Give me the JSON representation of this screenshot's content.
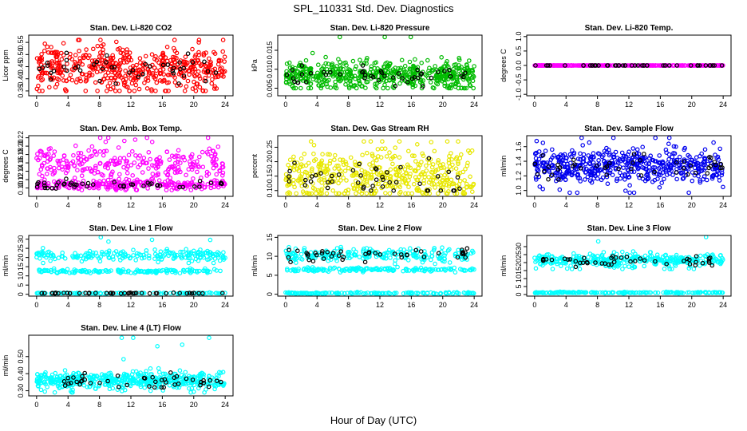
{
  "figure": {
    "main_title": "SPL_110331  Std. Dev. Diagnostics",
    "xlabel": "Hour of Day (UTC)"
  },
  "chart_data": [
    {
      "type": "scatter",
      "title": "Stan. Dev. Li-820 CO2",
      "ylabel": "Licor ppm",
      "xlim": [
        -1,
        25
      ],
      "ylim": [
        0.33,
        0.58
      ],
      "xticks": [
        0,
        4,
        8,
        12,
        16,
        20,
        24
      ],
      "yticks": [
        0.35,
        0.4,
        0.45,
        0.5,
        0.55
      ],
      "ytick_labels": [
        "0.35",
        "0.40",
        "0.45",
        "0.50",
        "0.55"
      ],
      "series": [
        {
          "color": "#ff0000",
          "count": 520,
          "center": 0.44,
          "spread": 0.045,
          "min": 0.35,
          "max": 0.56
        },
        {
          "color": "#000000",
          "count": 45,
          "center": 0.44,
          "spread": 0.025,
          "min": 0.38,
          "max": 0.54
        }
      ]
    },
    {
      "type": "scatter",
      "title": "Stan. Dev. Li-820 Pressure",
      "ylabel": "kPa",
      "xlim": [
        -1,
        25
      ],
      "ylim": [
        0.003,
        0.019
      ],
      "xticks": [
        0,
        4,
        8,
        12,
        16,
        20,
        24
      ],
      "yticks": [
        0.005,
        0.01,
        0.015
      ],
      "ytick_labels": [
        "0.005",
        "0.010",
        "0.015"
      ],
      "series": [
        {
          "color": "#00bb00",
          "count": 560,
          "center": 0.0085,
          "spread": 0.0018,
          "min": 0.005,
          "max": 0.0185
        },
        {
          "color": "#000000",
          "count": 45,
          "center": 0.0082,
          "spread": 0.0012,
          "min": 0.0055,
          "max": 0.011
        }
      ]
    },
    {
      "type": "scatter",
      "title": "Stan. Dev. Li-820 Temp.",
      "ylabel": "degrees C",
      "xlim": [
        -1,
        25
      ],
      "ylim": [
        -1.05,
        1.05
      ],
      "xticks": [
        0,
        4,
        8,
        12,
        16,
        20,
        24
      ],
      "yticks": [
        -1.0,
        -0.5,
        0.0,
        0.5,
        1.0
      ],
      "ytick_labels": [
        "-1.0",
        "-0.5",
        "0.0",
        "0.5",
        "1.0"
      ],
      "series": [
        {
          "color": "#ff00ff",
          "count": 300,
          "center": 0.0,
          "spread": 0.0,
          "min": 0.0,
          "max": 0.0
        },
        {
          "color": "#000000",
          "count": 45,
          "center": 0.0,
          "spread": 0.0,
          "min": 0.0,
          "max": 0.0
        }
      ]
    },
    {
      "type": "scatter",
      "title": "Stan. Dev. Amb. Box Temp.",
      "ylabel": "degrees C",
      "xlim": [
        -1,
        25
      ],
      "ylim": [
        0.08,
        0.225
      ],
      "xticks": [
        0,
        4,
        8,
        12,
        16,
        20,
        24
      ],
      "yticks": [
        0.1,
        0.12,
        0.14,
        0.16,
        0.18,
        0.2,
        0.22
      ],
      "ytick_labels": [
        "0.10",
        "0.12",
        "0.14",
        "0.16",
        "0.18",
        "0.20",
        "0.22"
      ],
      "series": [
        {
          "color": "#ff00ff",
          "count": 300,
          "center": 0.155,
          "spread": 0.022,
          "min": 0.1,
          "max": 0.22
        },
        {
          "color": "#ff00ff",
          "count": 220,
          "center": 0.108,
          "spread": 0.006,
          "min": 0.095,
          "max": 0.125
        },
        {
          "color": "#000000",
          "count": 45,
          "center": 0.108,
          "spread": 0.006,
          "min": 0.095,
          "max": 0.125
        }
      ]
    },
    {
      "type": "scatter",
      "title": "Stan. Dev. Gas Stream RH",
      "ylabel": "percent",
      "xlim": [
        -1,
        25
      ],
      "ylim": [
        0.08,
        0.29
      ],
      "xticks": [
        0,
        4,
        8,
        12,
        16,
        20,
        24
      ],
      "yticks": [
        0.1,
        0.15,
        0.2,
        0.25
      ],
      "ytick_labels": [
        "0.10",
        "0.15",
        "0.20",
        "0.25"
      ],
      "series": [
        {
          "color": "#ffff00",
          "count": 460,
          "center": 0.15,
          "spread": 0.045,
          "min": 0.09,
          "max": 0.27
        },
        {
          "color": "#000000",
          "count": 45,
          "center": 0.13,
          "spread": 0.035,
          "min": 0.1,
          "max": 0.28
        }
      ]
    },
    {
      "type": "scatter",
      "title": "Stan. Dev. Sample Flow",
      "ylabel": "ml/min",
      "xlim": [
        -1,
        25
      ],
      "ylim": [
        0.92,
        1.75
      ],
      "xticks": [
        0,
        4,
        8,
        12,
        16,
        20,
        24
      ],
      "yticks": [
        1.0,
        1.2,
        1.4,
        1.6
      ],
      "ytick_labels": [
        "1.0",
        "1.2",
        "1.4",
        "1.6"
      ],
      "series": [
        {
          "color": "#0000ee",
          "count": 520,
          "center": 1.33,
          "spread": 0.12,
          "min": 0.97,
          "max": 1.72
        },
        {
          "color": "#000000",
          "count": 45,
          "center": 1.32,
          "spread": 0.08,
          "min": 1.15,
          "max": 1.5
        }
      ]
    },
    {
      "type": "scatter",
      "title": "Stan. Dev. Line 1 Flow",
      "ylabel": "ml/min",
      "xlim": [
        -1,
        25
      ],
      "ylim": [
        -1,
        32
      ],
      "xticks": [
        0,
        4,
        8,
        12,
        16,
        20,
        24
      ],
      "yticks": [
        0,
        5,
        10,
        15,
        20,
        25,
        30
      ],
      "ytick_labels": [
        "0",
        "5",
        "10",
        "15",
        "20",
        "25",
        "30"
      ],
      "series": [
        {
          "color": "#00ffff",
          "count": 200,
          "center": 21,
          "spread": 1.5,
          "min": 17,
          "max": 31
        },
        {
          "color": "#00ffff",
          "count": 150,
          "center": 12.5,
          "spread": 0.5,
          "min": 11.5,
          "max": 14
        },
        {
          "color": "#00ffff",
          "count": 100,
          "center": 0.6,
          "spread": 0.15,
          "min": 0.3,
          "max": 1
        },
        {
          "color": "#000000",
          "count": 45,
          "center": 0.6,
          "spread": 0.1,
          "min": 0.4,
          "max": 0.9
        }
      ]
    },
    {
      "type": "scatter",
      "title": "Stan. Dev. Line 2 Flow",
      "ylabel": "ml/min",
      "xlim": [
        -1,
        25
      ],
      "ylim": [
        -0.5,
        15.5
      ],
      "xticks": [
        0,
        4,
        8,
        12,
        16,
        20,
        24
      ],
      "yticks": [
        0,
        5,
        10,
        15
      ],
      "ytick_labels": [
        "0",
        "5",
        "10",
        "15"
      ],
      "series": [
        {
          "color": "#00ffff",
          "count": 220,
          "center": 10.4,
          "spread": 0.9,
          "min": 8,
          "max": 15.5
        },
        {
          "color": "#00ffff",
          "count": 150,
          "center": 6.5,
          "spread": 0.25,
          "min": 5.8,
          "max": 7.2
        },
        {
          "color": "#00ffff",
          "count": 150,
          "center": 0.3,
          "spread": 0.1,
          "min": 0.1,
          "max": 0.6
        },
        {
          "color": "#000000",
          "count": 45,
          "center": 10.5,
          "spread": 0.8,
          "min": 8.5,
          "max": 12.5
        }
      ]
    },
    {
      "type": "scatter",
      "title": "Stan. Dev. Line 3 Flow",
      "ylabel": "ml/min",
      "xlim": [
        -1,
        25
      ],
      "ylim": [
        -1,
        37
      ],
      "xticks": [
        0,
        4,
        8,
        12,
        16,
        20,
        24
      ],
      "yticks": [
        0,
        5,
        10,
        15,
        20,
        25,
        30
      ],
      "ytick_labels": [
        "0",
        "5",
        "10",
        "15",
        "20",
        "25",
        "30"
      ],
      "series": [
        {
          "color": "#00ffff",
          "count": 360,
          "center": 21.5,
          "spread": 2.0,
          "min": 16,
          "max": 36
        },
        {
          "color": "#00ffff",
          "count": 180,
          "center": 1.2,
          "spread": 0.2,
          "min": 0.7,
          "max": 1.8
        },
        {
          "color": "#000000",
          "count": 45,
          "center": 20.5,
          "spread": 1.5,
          "min": 17,
          "max": 24
        }
      ]
    },
    {
      "type": "scatter",
      "title": "Stan. Dev. Line 4 (LT) Flow",
      "ylabel": "ml/min",
      "xlim": [
        -1,
        25
      ],
      "ylim": [
        0.27,
        0.625
      ],
      "xticks": [
        0,
        4,
        8,
        12,
        16,
        20,
        24
      ],
      "yticks": [
        0.3,
        0.4,
        0.5
      ],
      "ytick_labels": [
        "0.30",
        "0.40",
        "0.50"
      ],
      "series": [
        {
          "color": "#00ffff",
          "count": 480,
          "center": 0.36,
          "spread": 0.025,
          "min": 0.29,
          "max": 0.61
        },
        {
          "color": "#000000",
          "count": 45,
          "center": 0.355,
          "spread": 0.02,
          "min": 0.32,
          "max": 0.42
        }
      ]
    }
  ]
}
